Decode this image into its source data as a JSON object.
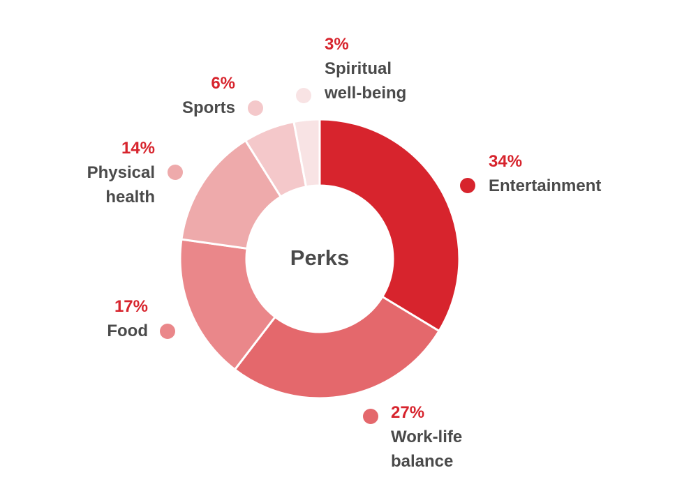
{
  "chart_data": {
    "type": "pie",
    "donut": true,
    "title": "Perks",
    "categories": [
      "Entertainment",
      "Work-life balance",
      "Food",
      "Physical health",
      "Sports",
      "Spiritual well-being"
    ],
    "values": [
      34,
      27,
      17,
      14,
      6,
      3
    ],
    "value_labels": [
      "34%",
      "27%",
      "17%",
      "14%",
      "6%",
      "3%"
    ],
    "colors": [
      "#d7242d",
      "#e4686c",
      "#ea878a",
      "#eeaaab",
      "#f4c8ca",
      "#f8e3e4"
    ]
  }
}
